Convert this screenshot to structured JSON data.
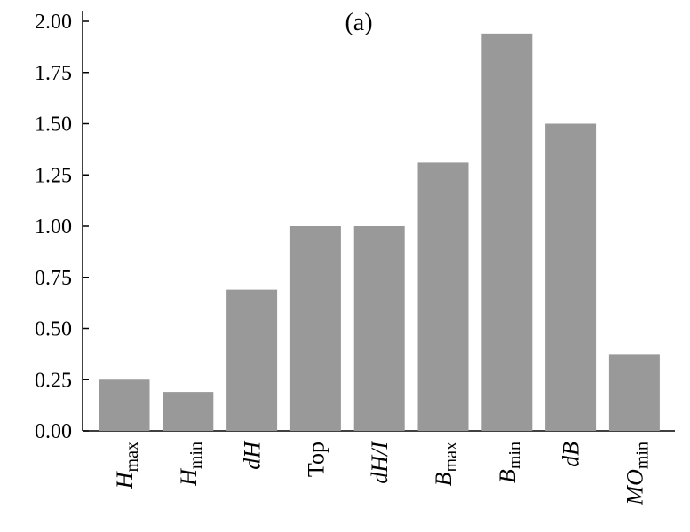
{
  "chart_data": {
    "type": "bar",
    "title": "(a)",
    "xlabel": "",
    "ylabel": "",
    "ylim": [
      0,
      2.0
    ],
    "yticks": [
      "0.00",
      "0.25",
      "0.50",
      "0.75",
      "1.00",
      "1.25",
      "1.50",
      "1.75",
      "2.00"
    ],
    "grid": false,
    "categories": [
      {
        "main": "H",
        "sub": "max",
        "italic": true
      },
      {
        "main": "H",
        "sub": "min",
        "italic": true
      },
      {
        "main": "dH",
        "sub": "",
        "italic": true
      },
      {
        "main": "Top",
        "sub": "",
        "italic": false
      },
      {
        "main": "dH/I",
        "sub": "",
        "italic": true
      },
      {
        "main": "B",
        "sub": "max",
        "italic": true
      },
      {
        "main": "B",
        "sub": "min",
        "italic": true
      },
      {
        "main": "dB",
        "sub": "",
        "italic": true
      },
      {
        "main": "MO",
        "sub": "min",
        "italic": true
      }
    ],
    "values": [
      0.25,
      0.19,
      0.69,
      1.0,
      1.0,
      1.31,
      1.94,
      1.5,
      0.375
    ],
    "bar_color": "#999999"
  }
}
